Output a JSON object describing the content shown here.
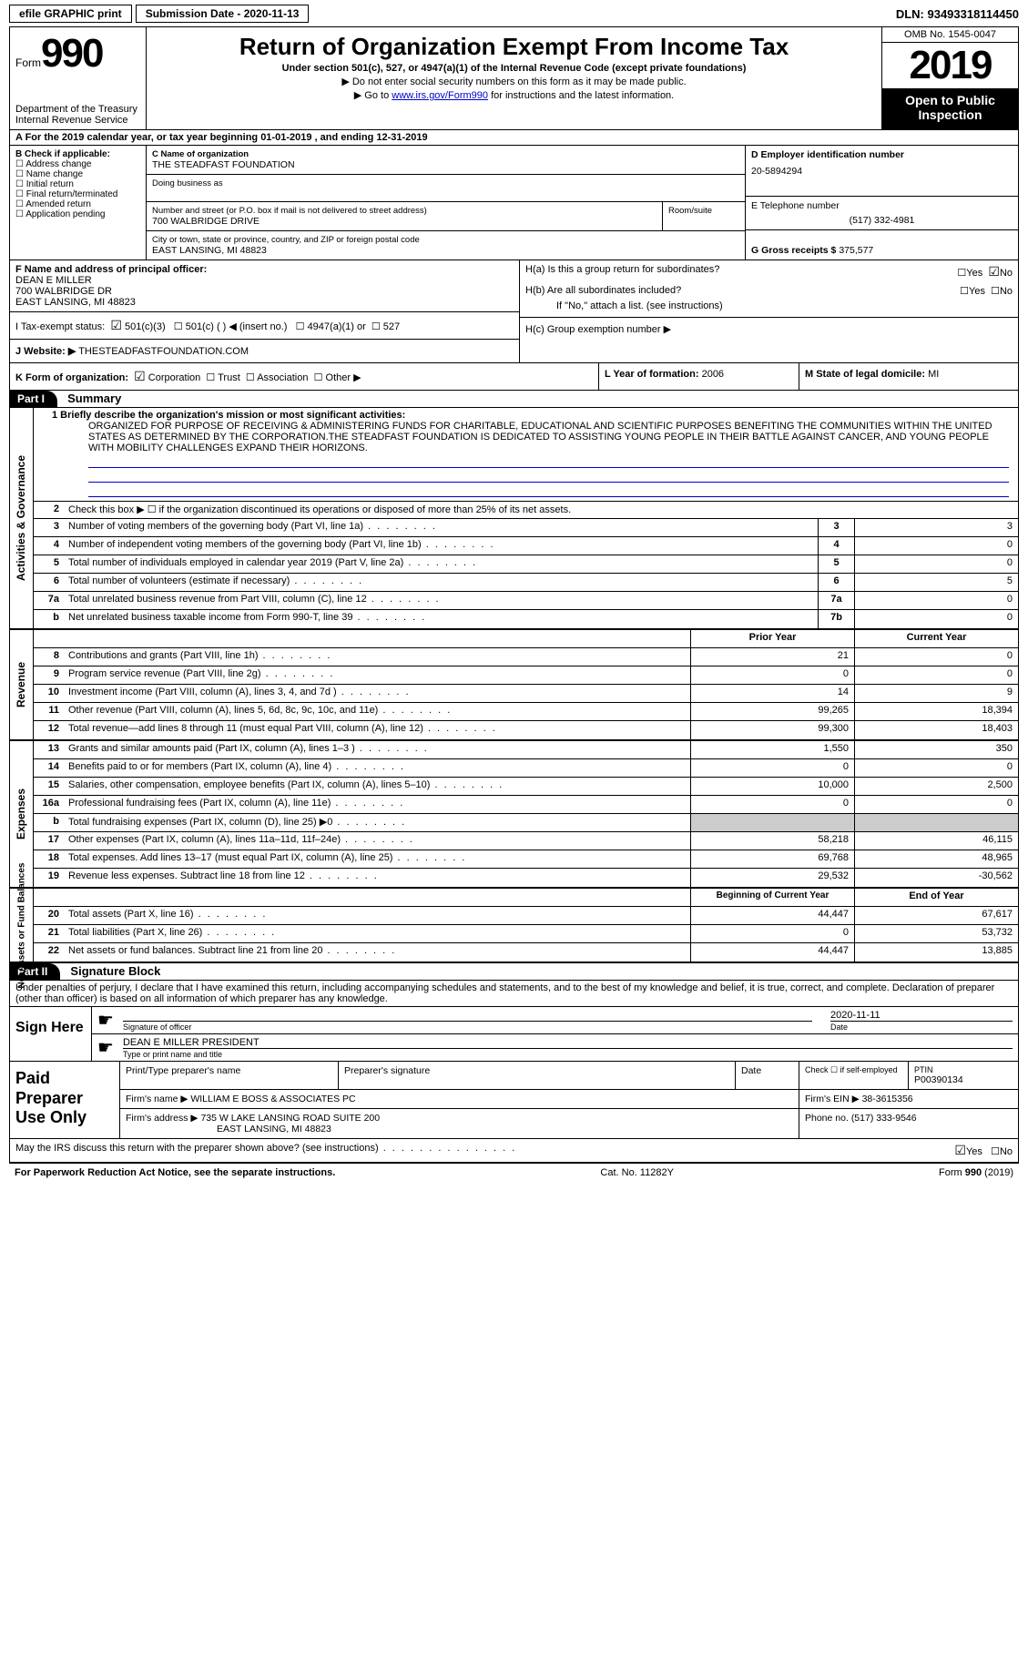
{
  "topbar": {
    "efile": "efile GRAPHIC print",
    "submission": "Submission Date - 2020-11-13",
    "dln": "DLN: 93493318114450"
  },
  "header": {
    "form_label": "Form",
    "form_number": "990",
    "dept": "Department of the Treasury\nInternal Revenue Service",
    "title": "Return of Organization Exempt From Income Tax",
    "subtitle": "Under section 501(c), 527, or 4947(a)(1) of the Internal Revenue Code (except private foundations)",
    "warn1": "▶ Do not enter social security numbers on this form as it may be made public.",
    "warn2_pre": "▶ Go to ",
    "warn2_link": "www.irs.gov/Form990",
    "warn2_post": " for instructions and the latest information.",
    "omb": "OMB No. 1545-0047",
    "year": "2019",
    "open": "Open to Public Inspection"
  },
  "line_a": "A For the 2019 calendar year, or tax year beginning 01-01-2019   , and ending 12-31-2019",
  "box_b": {
    "label": "B Check if applicable:",
    "items": [
      "Address change",
      "Name change",
      "Initial return",
      "Final return/terminated",
      "Amended return",
      "Application pending"
    ]
  },
  "box_c": {
    "name_label": "C Name of organization",
    "name": "THE STEADFAST FOUNDATION",
    "dba_label": "Doing business as",
    "street_label": "Number and street (or P.O. box if mail is not delivered to street address)",
    "room_label": "Room/suite",
    "street": "700 WALBRIDGE DRIVE",
    "city_label": "City or town, state or province, country, and ZIP or foreign postal code",
    "city": "EAST LANSING, MI  48823"
  },
  "box_d": {
    "label": "D Employer identification number",
    "value": "20-5894294"
  },
  "box_e": {
    "label": "E Telephone number",
    "value": "(517) 332-4981"
  },
  "box_g": {
    "label": "G Gross receipts $",
    "value": "375,577"
  },
  "box_f": {
    "label": "F Name and address of principal officer:",
    "name": "DEAN E MILLER",
    "street": "700 WALBRIDGE DR",
    "city": "EAST LANSING, MI  48823"
  },
  "box_h": {
    "a": "H(a) Is this a group return for subordinates?",
    "b": "H(b) Are all subordinates included?",
    "b_note": "If \"No,\" attach a list. (see instructions)",
    "c": "H(c) Group exemption number ▶",
    "yes": "Yes",
    "no": "No"
  },
  "line_i": {
    "label": "I   Tax-exempt status:",
    "opt1": "501(c)(3)",
    "opt2": "501(c) (  ) ◀ (insert no.)",
    "opt3": "4947(a)(1) or",
    "opt4": "527"
  },
  "line_j": {
    "label": "J   Website: ▶",
    "value": "THESTEADFASTFOUNDATION.COM"
  },
  "line_k": {
    "label": "K Form of organization:",
    "opts": [
      "Corporation",
      "Trust",
      "Association",
      "Other ▶"
    ]
  },
  "line_l": {
    "label": "L Year of formation:",
    "value": "2006"
  },
  "line_m": {
    "label": "M State of legal domicile:",
    "value": "MI"
  },
  "part1": {
    "hdr": "Part I",
    "title": "Summary",
    "q1_label": "1 Briefly describe the organization's mission or most significant activities:",
    "q1_text": "ORGANIZED FOR PURPOSE OF RECEIVING & ADMINISTERING FUNDS FOR CHARITABLE, EDUCATIONAL AND SCIENTIFIC PURPOSES BENEFITING THE COMMUNITIES WITHIN THE UNITED STATES AS DETERMINED BY THE CORPORATION.THE STEADFAST FOUNDATION IS DEDICATED TO ASSISTING YOUNG PEOPLE IN THEIR BATTLE AGAINST CANCER, AND YOUNG PEOPLE WITH MOBILITY CHALLENGES EXPAND THEIR HORIZONS.",
    "side_act": "Activities & Governance",
    "side_rev": "Revenue",
    "side_exp": "Expenses",
    "side_net": "Net Assets or Fund Balances",
    "q2": "Check this box ▶ ☐ if the organization discontinued its operations or disposed of more than 25% of its net assets.",
    "rows_gov": [
      {
        "n": "3",
        "d": "Number of voting members of the governing body (Part VI, line 1a)",
        "k": "3",
        "v": "3"
      },
      {
        "n": "4",
        "d": "Number of independent voting members of the governing body (Part VI, line 1b)",
        "k": "4",
        "v": "0"
      },
      {
        "n": "5",
        "d": "Total number of individuals employed in calendar year 2019 (Part V, line 2a)",
        "k": "5",
        "v": "0"
      },
      {
        "n": "6",
        "d": "Total number of volunteers (estimate if necessary)",
        "k": "6",
        "v": "5"
      },
      {
        "n": "7a",
        "d": "Total unrelated business revenue from Part VIII, column (C), line 12",
        "k": "7a",
        "v": "0"
      },
      {
        "n": "b",
        "d": "Net unrelated business taxable income from Form 990-T, line 39",
        "k": "7b",
        "v": "0"
      }
    ],
    "col_prior": "Prior Year",
    "col_curr": "Current Year",
    "rows_rev": [
      {
        "n": "8",
        "d": "Contributions and grants (Part VIII, line 1h)",
        "p": "21",
        "c": "0"
      },
      {
        "n": "9",
        "d": "Program service revenue (Part VIII, line 2g)",
        "p": "0",
        "c": "0"
      },
      {
        "n": "10",
        "d": "Investment income (Part VIII, column (A), lines 3, 4, and 7d )",
        "p": "14",
        "c": "9"
      },
      {
        "n": "11",
        "d": "Other revenue (Part VIII, column (A), lines 5, 6d, 8c, 9c, 10c, and 11e)",
        "p": "99,265",
        "c": "18,394"
      },
      {
        "n": "12",
        "d": "Total revenue—add lines 8 through 11 (must equal Part VIII, column (A), line 12)",
        "p": "99,300",
        "c": "18,403"
      }
    ],
    "rows_exp": [
      {
        "n": "13",
        "d": "Grants and similar amounts paid (Part IX, column (A), lines 1–3 )",
        "p": "1,550",
        "c": "350"
      },
      {
        "n": "14",
        "d": "Benefits paid to or for members (Part IX, column (A), line 4)",
        "p": "0",
        "c": "0"
      },
      {
        "n": "15",
        "d": "Salaries, other compensation, employee benefits (Part IX, column (A), lines 5–10)",
        "p": "10,000",
        "c": "2,500"
      },
      {
        "n": "16a",
        "d": "Professional fundraising fees (Part IX, column (A), line 11e)",
        "p": "0",
        "c": "0"
      },
      {
        "n": "b",
        "d": "Total fundraising expenses (Part IX, column (D), line 25) ▶0",
        "p": "",
        "c": ""
      },
      {
        "n": "17",
        "d": "Other expenses (Part IX, column (A), lines 11a–11d, 11f–24e)",
        "p": "58,218",
        "c": "46,115"
      },
      {
        "n": "18",
        "d": "Total expenses. Add lines 13–17 (must equal Part IX, column (A), line 25)",
        "p": "69,768",
        "c": "48,965"
      },
      {
        "n": "19",
        "d": "Revenue less expenses. Subtract line 18 from line 12",
        "p": "29,532",
        "c": "-30,562"
      }
    ],
    "col_beg": "Beginning of Current Year",
    "col_end": "End of Year",
    "rows_net": [
      {
        "n": "20",
        "d": "Total assets (Part X, line 16)",
        "p": "44,447",
        "c": "67,617"
      },
      {
        "n": "21",
        "d": "Total liabilities (Part X, line 26)",
        "p": "0",
        "c": "53,732"
      },
      {
        "n": "22",
        "d": "Net assets or fund balances. Subtract line 21 from line 20",
        "p": "44,447",
        "c": "13,885"
      }
    ]
  },
  "part2": {
    "hdr": "Part II",
    "title": "Signature Block",
    "decl": "Under penalties of perjury, I declare that I have examined this return, including accompanying schedules and statements, and to the best of my knowledge and belief, it is true, correct, and complete. Declaration of preparer (other than officer) is based on all information of which preparer has any knowledge.",
    "sign_here": "Sign Here",
    "sig_officer": "Signature of officer",
    "sig_date": "Date",
    "sig_date_val": "2020-11-11",
    "sig_name": "DEAN E MILLER  PRESIDENT",
    "sig_name_lbl": "Type or print name and title",
    "paid": "Paid Preparer Use Only",
    "prep_name_lbl": "Print/Type preparer's name",
    "prep_sig_lbl": "Preparer's signature",
    "prep_date_lbl": "Date",
    "prep_check": "Check ☐ if self-employed",
    "ptin_lbl": "PTIN",
    "ptin": "P00390134",
    "firm_name_lbl": "Firm's name    ▶",
    "firm_name": "WILLIAM E BOSS & ASSOCIATES PC",
    "firm_ein_lbl": "Firm's EIN ▶",
    "firm_ein": "38-3615356",
    "firm_addr_lbl": "Firm's address ▶",
    "firm_addr1": "735 W LAKE LANSING ROAD SUITE 200",
    "firm_addr2": "EAST LANSING, MI  48823",
    "phone_lbl": "Phone no.",
    "phone": "(517) 333-9546"
  },
  "discuss": {
    "text": "May the IRS discuss this return with the preparer shown above? (see instructions)",
    "yes": "Yes",
    "no": "No"
  },
  "footer": {
    "left": "For Paperwork Reduction Act Notice, see the separate instructions.",
    "mid": "Cat. No. 11282Y",
    "right": "Form 990 (2019)"
  }
}
